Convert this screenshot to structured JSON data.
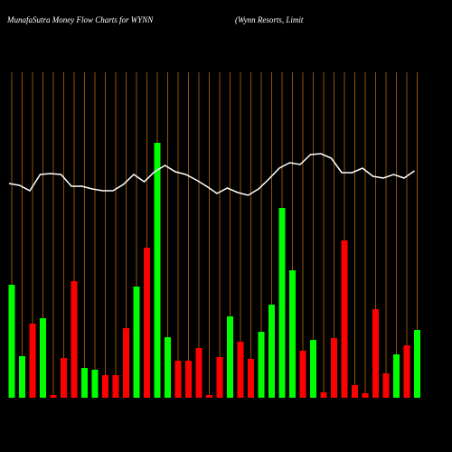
{
  "chart_data": {
    "type": "bar",
    "title": "MunafaSutra  Money Flow  Charts for WYNN",
    "subtitle": "(Wynn  Resorts,  Limit",
    "categories": [
      null,
      null,
      null,
      null,
      null,
      null,
      null,
      null,
      null,
      null,
      null,
      null,
      null,
      null,
      null,
      null,
      null,
      null,
      null,
      null,
      null,
      null,
      null,
      null,
      null,
      null,
      null,
      null,
      null,
      null,
      null,
      null,
      null,
      null,
      null,
      null,
      null,
      null,
      null,
      null
    ],
    "ylim": [
      0,
      300
    ],
    "grid_color": "#b8660b",
    "series": [
      {
        "values": [
          125,
          46,
          82,
          88,
          3,
          44,
          129,
          33,
          31,
          25,
          25,
          77,
          123,
          166,
          282,
          67,
          41,
          41,
          55,
          3,
          45,
          90,
          62,
          43,
          73,
          103,
          210,
          141,
          52,
          64,
          6,
          66,
          174,
          14,
          5,
          98,
          27,
          48,
          58,
          75
        ],
        "colors": [
          "#00ff00",
          "#00ff00",
          "#ff0000",
          "#00ff00",
          "#ff0000",
          "#ff0000",
          "#ff0000",
          "#00ff00",
          "#00ff00",
          "#ff0000",
          "#ff0000",
          "#ff0000",
          "#00ff00",
          "#ff0000",
          "#00ff00",
          "#00ff00",
          "#ff0000",
          "#ff0000",
          "#ff0000",
          "#ff0000",
          "#ff0000",
          "#00ff00",
          "#ff0000",
          "#ff0000",
          "#00ff00",
          "#00ff00",
          "#00ff00",
          "#00ff00",
          "#ff0000",
          "#00ff00",
          "#ff0000",
          "#ff0000",
          "#ff0000",
          "#ff0000",
          "#ff0000",
          "#ff0000",
          "#ff0000",
          "#00ff00",
          "#ff0000",
          "#00ff00"
        ]
      },
      {
        "type": "line",
        "color": "#ffffff",
        "values": [
          237,
          235,
          229,
          247,
          248,
          247,
          234,
          234,
          231,
          229,
          229,
          236,
          247,
          239,
          250,
          257,
          250,
          247,
          241,
          234,
          226,
          232,
          227,
          224,
          231,
          242,
          254,
          260,
          258,
          269,
          270,
          265,
          249,
          249,
          254,
          245,
          243,
          247,
          243,
          251
        ]
      }
    ]
  }
}
